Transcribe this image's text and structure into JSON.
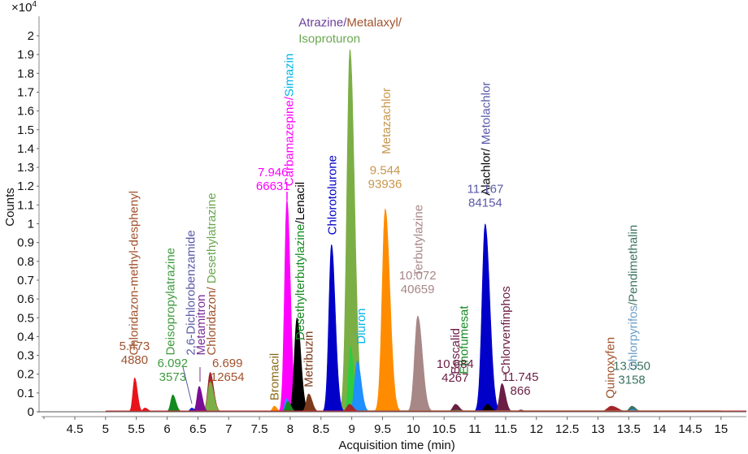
{
  "chart_data": {
    "type": "area",
    "title": "",
    "xlabel": "Acquisition time (min)",
    "ylabel": "Counts",
    "y_multiplier": "×10",
    "y_multiplier_exp": "4",
    "xlim": [
      4.1,
      15.4
    ],
    "ylim": [
      0,
      2.05
    ],
    "x_ticks": [
      4.5,
      5,
      5.5,
      6,
      6.5,
      7,
      7.5,
      8,
      8.5,
      9,
      9.5,
      10,
      10.5,
      11,
      11.5,
      12,
      12.5,
      13,
      13.5,
      14,
      14.5,
      15
    ],
    "x_tick_labels": [
      "4.5",
      "5",
      "5.5",
      "6",
      "6.5",
      "7",
      "7.5",
      "8",
      "8.5",
      "9",
      "9.5",
      "10",
      "10.5",
      "11",
      "11.5",
      "12",
      "12.5",
      "13",
      "13.5",
      "14",
      "14.5",
      "15"
    ],
    "y_ticks": [
      0,
      0.1,
      0.2,
      0.3,
      0.4,
      0.5,
      0.6,
      0.7,
      0.8,
      0.9,
      1,
      1.1,
      1.2,
      1.3,
      1.4,
      1.5,
      1.6,
      1.7,
      1.8,
      1.9,
      2
    ],
    "y_tick_labels": [
      "0",
      "0.1",
      "0.2",
      "0.3",
      "0.4",
      "0.5",
      "0.6",
      "0.7",
      "0.8",
      "0.9",
      "1",
      "1.1",
      "1.2",
      "1.3",
      "1.4",
      "1.5",
      "1.6",
      "1.7",
      "1.8",
      "1.9",
      "2"
    ],
    "grid": false,
    "series": [
      {
        "name": "Chloridazon-methyl-desphenyl",
        "color": "#e8131a",
        "peaks": [
          {
            "rt": 5.473,
            "height": 0.18,
            "width": 0.035
          },
          {
            "rt": 5.64,
            "height": 0.02,
            "width": 0.04
          }
        ]
      },
      {
        "name": "Deisopropylatrazine",
        "color": "#138a1f",
        "peaks": [
          {
            "rt": 6.092,
            "height": 0.09,
            "width": 0.04
          }
        ]
      },
      {
        "name": "2,6-Dichlorobenzamide",
        "color": "#1a1ad0",
        "peaks": [
          {
            "rt": 6.4,
            "height": 0.02,
            "width": 0.035
          }
        ]
      },
      {
        "name": "Metamitron",
        "color": "#7a0d96",
        "peaks": [
          {
            "rt": 6.52,
            "height": 0.135,
            "width": 0.04
          }
        ]
      },
      {
        "name": "Chloridazon",
        "color": "#a3262a",
        "peaks": [
          {
            "rt": 6.699,
            "height": 0.21,
            "width": 0.045
          }
        ]
      },
      {
        "name": "Desethylatrazine",
        "color": "#7cae46",
        "peaks": [
          {
            "rt": 6.7,
            "height": 0.16,
            "width": 0.045
          }
        ]
      },
      {
        "name": "Bromacil",
        "color": "#ff8c00",
        "peaks": [
          {
            "rt": 7.74,
            "height": 0.03,
            "width": 0.035
          }
        ]
      },
      {
        "name": "Carbamazepine",
        "color": "#ff00ff",
        "peaks": [
          {
            "rt": 7.946,
            "height": 1.13,
            "width": 0.045
          }
        ]
      },
      {
        "name": "Simazin",
        "color": "#1e90ff",
        "peaks": [
          {
            "rt": 7.94,
            "height": 0.07,
            "width": 0.035
          }
        ]
      },
      {
        "name": "Desethylterbutylazine",
        "color": "#138a1f",
        "peaks": [
          {
            "rt": 7.96,
            "height": 0.055,
            "width": 0.04
          }
        ]
      },
      {
        "name": "Lenacil",
        "color": "#000000",
        "peaks": [
          {
            "rt": 8.11,
            "height": 0.5,
            "width": 0.05
          }
        ]
      },
      {
        "name": "Metribuzin",
        "color": "#7b3a1a",
        "peaks": [
          {
            "rt": 8.3,
            "height": 0.095,
            "width": 0.045
          }
        ]
      },
      {
        "name": "Chlorotolurone",
        "color": "#0000c8",
        "peaks": [
          {
            "rt": 8.67,
            "height": 0.89,
            "width": 0.05
          }
        ]
      },
      {
        "name": "Isoproturon",
        "color": "#7cae46",
        "peaks": [
          {
            "rt": 8.97,
            "height": 1.93,
            "width": 0.06
          }
        ]
      },
      {
        "name": "Metalaxyl",
        "color": "#a3262a",
        "peaks": [
          {
            "rt": 8.96,
            "height": 0.04,
            "width": 0.05
          }
        ]
      },
      {
        "name": "Atrazine",
        "color": "#2ecc40",
        "peaks": [
          {
            "rt": 8.98,
            "height": 0.35,
            "width": 0.04
          }
        ]
      },
      {
        "name": "Diuron",
        "color": "#1e90ff",
        "peaks": [
          {
            "rt": 9.09,
            "height": 0.27,
            "width": 0.05
          }
        ]
      },
      {
        "name": "Metazachlor",
        "color": "#ff8c00",
        "peaks": [
          {
            "rt": 9.544,
            "height": 1.08,
            "width": 0.06
          }
        ]
      },
      {
        "name": "Terbutylazine",
        "color": "#a88787",
        "peaks": [
          {
            "rt": 10.072,
            "height": 0.51,
            "width": 0.06
          }
        ]
      },
      {
        "name": "Boscalid",
        "color": "#6b1e45",
        "peaks": [
          {
            "rt": 10.684,
            "height": 0.04,
            "width": 0.05
          }
        ]
      },
      {
        "name": "Ethofumesat",
        "color": "#138a1f",
        "peaks": [
          {
            "rt": 10.7,
            "height": 0.01,
            "width": 0.05
          }
        ]
      },
      {
        "name": "Metolachlor",
        "color": "#0000c8",
        "peaks": [
          {
            "rt": 11.167,
            "height": 1.0,
            "width": 0.06
          }
        ]
      },
      {
        "name": "Alachlor",
        "color": "#000000",
        "peaks": [
          {
            "rt": 11.2,
            "height": 0.04,
            "width": 0.05
          }
        ]
      },
      {
        "name": "Chlorvenfinphos",
        "color": "#6b1e45",
        "peaks": [
          {
            "rt": 11.44,
            "height": 0.15,
            "width": 0.045
          },
          {
            "rt": 11.745,
            "height": 0.01,
            "width": 0.04
          }
        ]
      },
      {
        "name": "Quinoxyfen",
        "color": "#a3262a",
        "peaks": [
          {
            "rt": 13.22,
            "height": 0.03,
            "width": 0.08
          }
        ]
      },
      {
        "name": "Chlorpyrifos",
        "color": "#1e90ff",
        "peaks": [
          {
            "rt": 13.56,
            "height": 0.012,
            "width": 0.05
          }
        ]
      },
      {
        "name": "Pendimethalin",
        "color": "#3d7360",
        "peaks": [
          {
            "rt": 13.55,
            "height": 0.03,
            "width": 0.05
          }
        ]
      }
    ],
    "annotations": [
      {
        "id": "cmd",
        "rotated": true,
        "at": [
          5.46,
          0.3
        ],
        "parts": [
          {
            "text": "Chloridazon-methyl-desphenyl",
            "color": "#a0522d"
          }
        ]
      },
      {
        "id": "cmd-val",
        "rotated": false,
        "at": [
          5.47,
          0.255
        ],
        "lines": [
          "5.473",
          "4880"
        ],
        "color": "#a0522d"
      },
      {
        "id": "dia",
        "rotated": true,
        "at": [
          6.05,
          0.3
        ],
        "parts": [
          {
            "text": "Deisopropylatrazine",
            "color": "#3e9a3e"
          }
        ]
      },
      {
        "id": "dia-val",
        "rotated": false,
        "at": [
          6.09,
          0.165
        ],
        "lines": [
          "6.092",
          "3573"
        ],
        "color": "#3e9a3e"
      },
      {
        "id": "dcb",
        "rotated": true,
        "at": [
          6.38,
          0.3
        ],
        "parts": [
          {
            "text": "2,6-Dichlorobenzamide",
            "color": "#5a5aa8"
          }
        ]
      },
      {
        "id": "mmt",
        "rotated": true,
        "at": [
          6.55,
          0.3
        ],
        "parts": [
          {
            "text": "Metamitron",
            "color": "#7a2d96"
          }
        ]
      },
      {
        "id": "chl",
        "rotated": true,
        "at": [
          6.72,
          0.3
        ],
        "parts": [
          {
            "text": "Chloridazon",
            "color": "#a0522d"
          },
          {
            "text": "/ ",
            "color": "#a0522d"
          },
          {
            "text": "Desethylatrazine",
            "color": "#6aa84f"
          }
        ]
      },
      {
        "id": "chl-val",
        "rotated": false,
        "at": [
          6.98,
          0.165
        ],
        "lines": [
          "6.699",
          "12654"
        ],
        "color": "#a0522d"
      },
      {
        "id": "bro",
        "rotated": true,
        "at": [
          7.74,
          0.06
        ],
        "parts": [
          {
            "text": "Bromacil",
            "color": "#8b6914"
          }
        ]
      },
      {
        "id": "cbz",
        "rotated": true,
        "at": [
          7.98,
          1.2
        ],
        "parts": [
          {
            "text": "Carbamazepine",
            "color": "#ff00ff"
          },
          {
            "text": "/",
            "color": "#ff00ff"
          },
          {
            "text": "Simazin",
            "color": "#00b5e8"
          }
        ]
      },
      {
        "id": "cbz-val",
        "rotated": false,
        "at": [
          7.72,
          1.18
        ],
        "lines": [
          "7.946",
          "66631"
        ],
        "color": "#ff00ff"
      },
      {
        "id": "det",
        "rotated": true,
        "at": [
          8.16,
          0.38
        ],
        "parts": [
          {
            "text": "Desethylterbutylazine",
            "color": "#138a1f"
          },
          {
            "text": "/",
            "color": "#000000"
          },
          {
            "text": "Lenacil",
            "color": "#000000"
          }
        ]
      },
      {
        "id": "mtb",
        "rotated": true,
        "at": [
          8.3,
          0.13
        ],
        "parts": [
          {
            "text": "Metribuzin",
            "color": "#7b3a1a"
          }
        ]
      },
      {
        "id": "ctl",
        "rotated": true,
        "at": [
          8.68,
          0.94
        ],
        "parts": [
          {
            "text": "Chlorotolurone",
            "color": "#0000c8"
          }
        ]
      },
      {
        "id": "atr",
        "rotated": false,
        "at": [
          8.4,
          2.05
        ],
        "lines2": [
          [
            {
              "text": "Atrazine",
              "color": "#6a3d9a"
            },
            {
              "text": "/",
              "color": "#6a3d9a"
            },
            {
              "text": "Metalaxyl/",
              "color": "#a0522d"
            }
          ],
          [
            {
              "text": "Isoproturon",
              "color": "#6aa84f"
            }
          ]
        ]
      },
      {
        "id": "diu",
        "rotated": true,
        "at": [
          9.15,
          0.36
        ],
        "parts": [
          {
            "text": "Diuron",
            "color": "#00b5e8"
          }
        ]
      },
      {
        "id": "mzc",
        "rotated": true,
        "at": [
          9.56,
          1.37
        ],
        "parts": [
          {
            "text": "Metazachlor",
            "color": "#c8964b"
          }
        ]
      },
      {
        "id": "mzc-val",
        "rotated": false,
        "at": [
          9.54,
          1.19
        ],
        "lines": [
          "9.544",
          "93936"
        ],
        "color": "#c8964b"
      },
      {
        "id": "tbz",
        "rotated": true,
        "at": [
          10.08,
          0.72
        ],
        "parts": [
          {
            "text": "Terbutylazine",
            "color": "#a88787"
          }
        ]
      },
      {
        "id": "tbz-val",
        "rotated": false,
        "at": [
          10.07,
          0.63
        ],
        "lines": [
          "10.072",
          "40659"
        ],
        "color": "#a88787"
      },
      {
        "id": "bos",
        "rotated": true,
        "at": [
          10.68,
          0.2
        ],
        "parts": [
          {
            "text": "Boscalid",
            "color": "#6b1e45"
          }
        ]
      },
      {
        "id": "eth",
        "rotated": true,
        "at": [
          10.82,
          0.2
        ],
        "parts": [
          {
            "text": "Ethofumesat",
            "color": "#138a1f"
          }
        ]
      },
      {
        "id": "bos-val",
        "rotated": false,
        "at": [
          10.68,
          0.16
        ],
        "lines": [
          "10.684",
          "4267"
        ],
        "color": "#6b1e45"
      },
      {
        "id": "ala",
        "rotated": true,
        "at": [
          11.18,
          1.15
        ],
        "parts": [
          {
            "text": "Alachlor",
            "color": "#000000"
          },
          {
            "text": "/ ",
            "color": "#000000"
          },
          {
            "text": "Metolachlor",
            "color": "#5a5aa8"
          }
        ]
      },
      {
        "id": "ala-val",
        "rotated": false,
        "at": [
          11.17,
          1.09
        ],
        "lines": [
          "11.167",
          "84154"
        ],
        "color": "#5a5aa8"
      },
      {
        "id": "cvp",
        "rotated": true,
        "at": [
          11.5,
          0.2
        ],
        "parts": [
          {
            "text": "Chlorvenfinphos",
            "color": "#6b1e45"
          }
        ]
      },
      {
        "id": "cvp-val",
        "rotated": false,
        "at": [
          11.74,
          0.09
        ],
        "lines": [
          "11.745",
          "866"
        ],
        "color": "#6b1e45"
      },
      {
        "id": "qnx",
        "rotated": true,
        "at": [
          13.2,
          0.07
        ],
        "parts": [
          {
            "text": "Quinoxyfen",
            "color": "#a0522d"
          }
        ]
      },
      {
        "id": "cpf",
        "rotated": true,
        "at": [
          13.57,
          0.22
        ],
        "parts": [
          {
            "text": "Chlorpyrifos",
            "color": "#6a9ec8"
          },
          {
            "text": "/",
            "color": "#3d7360"
          },
          {
            "text": "Pendimethalin",
            "color": "#3d7360"
          }
        ]
      },
      {
        "id": "cpf-val",
        "rotated": false,
        "at": [
          13.55,
          0.15
        ],
        "lines": [
          "13.550",
          "3158"
        ],
        "color": "#3d7360"
      }
    ]
  }
}
